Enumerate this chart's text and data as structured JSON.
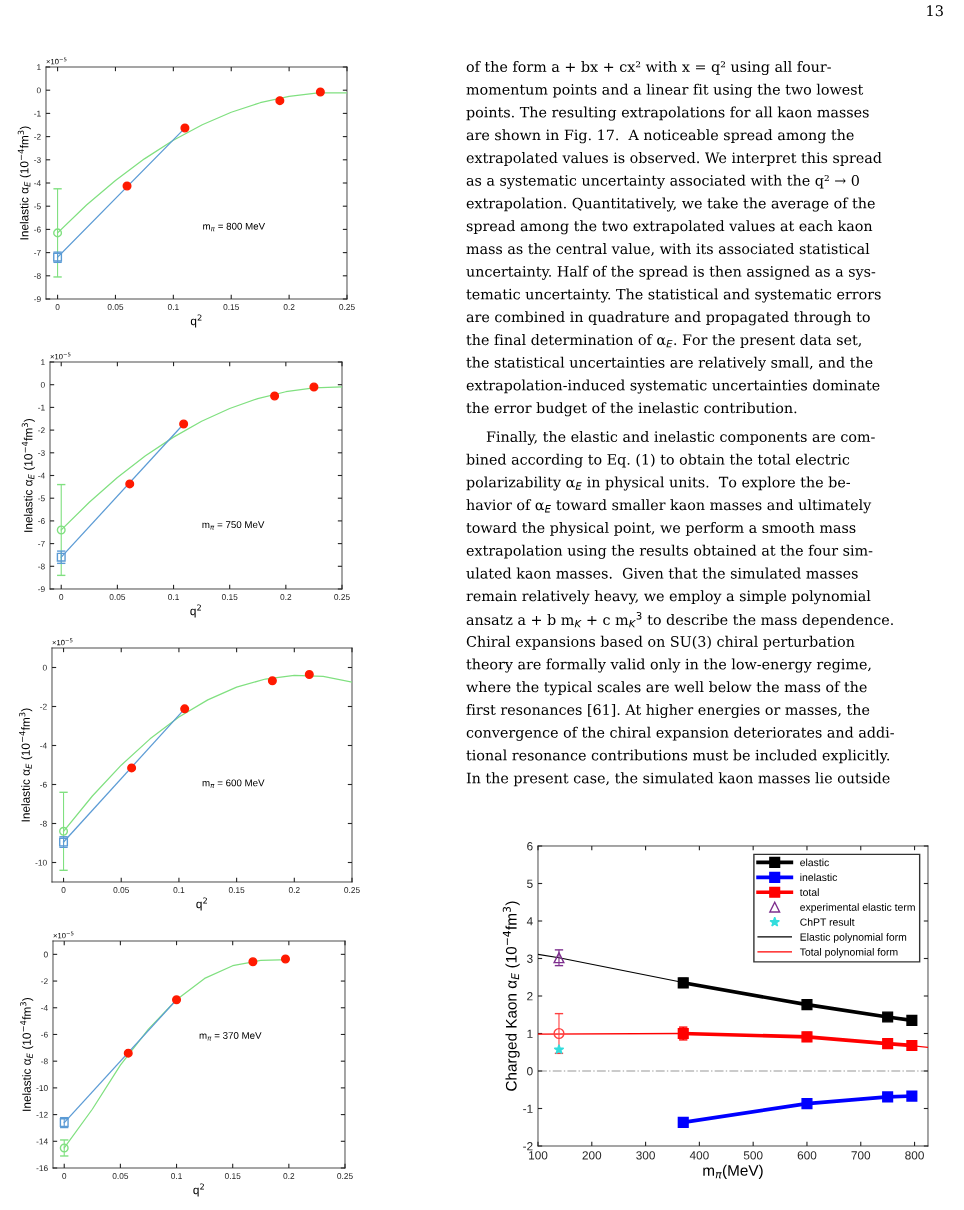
{
  "chart_data": [
    {
      "type": "scatter",
      "xlabel": "q$^{2}$",
      "ylabel": "Inelastic α$_{E}$ (10$^{−4}$fm$^{3}$)",
      "xlim": [
        -0.01,
        0.25
      ],
      "ylim": [
        -9,
        1
      ],
      "xticks": [
        0,
        0.05,
        0.1,
        0.15,
        0.2,
        0.25
      ],
      "yticks": [
        -9,
        -8,
        -7,
        -6,
        -5,
        -4,
        -3,
        -2,
        -1,
        0,
        1
      ],
      "annotations": [
        "×10$^{−5}$",
        "m$_{π}$ = 800 MeV"
      ],
      "series": [
        {
          "type": "line",
          "color": "#80e080",
          "x": [
            0,
            0.025,
            0.05,
            0.075,
            0.1,
            0.125,
            0.15,
            0.175,
            0.2,
            0.225,
            0.25
          ],
          "values": [
            -6.15,
            -4.95,
            -3.89,
            -2.96,
            -2.16,
            -1.49,
            -0.95,
            -0.54,
            -0.27,
            -0.12,
            -0.11
          ]
        },
        {
          "type": "line",
          "color": "#5b9bd5",
          "x": [
            0,
            0.11
          ],
          "values": [
            -7.2,
            -1.63
          ]
        },
        {
          "type": "scatter",
          "color": "#ff1a00",
          "marker": "circle",
          "x": [
            0.06,
            0.11,
            0.192,
            0.227
          ],
          "values": [
            -4.13,
            -1.63,
            -0.45,
            -0.08
          ]
        },
        {
          "type": "scatter",
          "color": "#80e080",
          "marker": "circle",
          "x": [
            0
          ],
          "values": [
            -6.15
          ],
          "errors": [
            1.9
          ]
        },
        {
          "type": "scatter",
          "color": "#5b9bd5",
          "marker": "square",
          "x": [
            0
          ],
          "values": [
            -7.2
          ],
          "errors": [
            0.22
          ]
        }
      ]
    },
    {
      "type": "scatter",
      "xlabel": "q$^{2}$",
      "ylabel": "Inelastic α$_{E}$ (10$^{−4}$fm$^{3}$)",
      "xlim": [
        -0.01,
        0.25
      ],
      "ylim": [
        -9,
        1
      ],
      "xticks": [
        0,
        0.05,
        0.1,
        0.15,
        0.2,
        0.25
      ],
      "yticks": [
        -9,
        -8,
        -7,
        -6,
        -5,
        -4,
        -3,
        -2,
        -1,
        0,
        1
      ],
      "annotations": [
        "×10$^{−5}$",
        "m$_{π}$ = 750 MeV"
      ],
      "series": [
        {
          "type": "line",
          "color": "#80e080",
          "x": [
            0,
            0.025,
            0.05,
            0.075,
            0.1,
            0.125,
            0.15,
            0.175,
            0.2,
            0.225,
            0.25
          ],
          "values": [
            -6.4,
            -5.18,
            -4.09,
            -3.13,
            -2.31,
            -1.61,
            -1.05,
            -0.61,
            -0.31,
            -0.14,
            -0.1
          ]
        },
        {
          "type": "line",
          "color": "#5b9bd5",
          "x": [
            0,
            0.109
          ],
          "values": [
            -7.6,
            -1.73
          ]
        },
        {
          "type": "scatter",
          "color": "#ff1a00",
          "marker": "circle",
          "x": [
            0.061,
            0.109,
            0.19,
            0.225
          ],
          "values": [
            -4.37,
            -1.73,
            -0.5,
            -0.1
          ]
        },
        {
          "type": "scatter",
          "color": "#80e080",
          "marker": "circle",
          "x": [
            0
          ],
          "values": [
            -6.4
          ],
          "errors": [
            2.0
          ]
        },
        {
          "type": "scatter",
          "color": "#5b9bd5",
          "marker": "square",
          "x": [
            0
          ],
          "values": [
            -7.6
          ],
          "errors": [
            0.27
          ]
        }
      ]
    },
    {
      "type": "scatter",
      "xlabel": "q$^{2}$",
      "ylabel": "Inelastic α$_{E}$ (10$^{−4}$fm$^{3}$)",
      "xlim": [
        -0.01,
        0.25
      ],
      "ylim": [
        -11,
        1
      ],
      "xticks": [
        0,
        0.05,
        0.1,
        0.15,
        0.2,
        0.25
      ],
      "yticks": [
        -10,
        -8,
        -6,
        -4,
        -2,
        0
      ],
      "annotations": [
        "×10$^{−5}$",
        "m$_{π}$ = 600 MeV"
      ],
      "series": [
        {
          "type": "line",
          "color": "#80e080",
          "x": [
            0,
            0.025,
            0.05,
            0.075,
            0.1,
            0.125,
            0.15,
            0.175,
            0.2,
            0.225,
            0.25
          ],
          "values": [
            -8.41,
            -6.59,
            -5.01,
            -3.66,
            -2.54,
            -1.66,
            -1.01,
            -0.59,
            -0.41,
            -0.46,
            -0.75
          ]
        },
        {
          "type": "line",
          "color": "#5b9bd5",
          "x": [
            0,
            0.105
          ],
          "values": [
            -8.95,
            -2.12
          ]
        },
        {
          "type": "scatter",
          "color": "#ff1a00",
          "marker": "circle",
          "x": [
            0.059,
            0.105,
            0.181,
            0.213
          ],
          "values": [
            -5.15,
            -2.12,
            -0.68,
            -0.36
          ]
        },
        {
          "type": "scatter",
          "color": "#80e080",
          "marker": "circle",
          "x": [
            0
          ],
          "values": [
            -8.4
          ],
          "errors": [
            2.0
          ]
        },
        {
          "type": "scatter",
          "color": "#5b9bd5",
          "marker": "square",
          "x": [
            0
          ],
          "values": [
            -8.95
          ],
          "errors": [
            0.27
          ]
        }
      ]
    },
    {
      "type": "scatter",
      "xlabel": "q$^{2}$",
      "ylabel": "Inelastic α$_{E}$ (10$^{−4}$fm$^{3}$)",
      "xlim": [
        -0.01,
        0.25
      ],
      "ylim": [
        -16,
        1
      ],
      "xticks": [
        0,
        0.05,
        0.1,
        0.15,
        0.2,
        0.25
      ],
      "yticks": [
        -16,
        -14,
        -12,
        -10,
        -8,
        -6,
        -4,
        -2,
        0
      ],
      "annotations": [
        "×10$^{−5}$",
        "m$_{π}$ = 370 MeV"
      ],
      "series": [
        {
          "type": "line",
          "color": "#80e080",
          "x": [
            0,
            0.025,
            0.05,
            0.075,
            0.1,
            0.125,
            0.15,
            0.175,
            0.2
          ],
          "values": [
            -14.5,
            -11.6,
            -8.3,
            -5.6,
            -3.4,
            -1.8,
            -0.85,
            -0.45,
            -0.4
          ]
        },
        {
          "type": "line",
          "color": "#5b9bd5",
          "x": [
            0,
            0.1
          ],
          "values": [
            -12.6,
            -3.4
          ]
        },
        {
          "type": "scatter",
          "color": "#ff1a00",
          "marker": "circle",
          "x": [
            0.057,
            0.1,
            0.168,
            0.197
          ],
          "values": [
            -7.4,
            -3.4,
            -0.55,
            -0.35
          ]
        },
        {
          "type": "scatter",
          "color": "#80e080",
          "marker": "circle",
          "x": [
            0
          ],
          "values": [
            -14.5
          ],
          "errors": [
            0.6
          ]
        },
        {
          "type": "scatter",
          "color": "#5b9bd5",
          "marker": "square",
          "x": [
            0
          ],
          "values": [
            -12.6
          ],
          "errors": [
            0.37
          ]
        }
      ]
    },
    {
      "type": "line",
      "xlabel": "m$_{π}$(MeV)",
      "ylabel": "Charged Kaon α$_{E}$ (10$^{−4}$fm$^{3}$)",
      "xlim": [
        100,
        825
      ],
      "ylim": [
        -2,
        6
      ],
      "xticks": [
        100,
        200,
        300,
        400,
        500,
        600,
        700,
        800
      ],
      "yticks": [
        -2,
        -1,
        0,
        1,
        2,
        3,
        4,
        5,
        6
      ],
      "legend": "top right",
      "ref_lines": [
        {
          "axis": "y",
          "value": 0,
          "color": "#bbbbbb",
          "line_style": "dashdot"
        }
      ],
      "series": [
        {
          "name": "elastic",
          "type": "line",
          "color": "#000000",
          "marker": "square",
          "x": [
            370,
            600,
            750,
            795
          ],
          "values": [
            2.35,
            1.77,
            1.44,
            1.35
          ],
          "errors": [
            0.12,
            0.05,
            0.06,
            0.05
          ]
        },
        {
          "name": "inelastic",
          "type": "line",
          "color": "#0000ff",
          "marker": "square",
          "x": [
            370,
            600,
            750,
            795
          ],
          "values": [
            -1.37,
            -0.87,
            -0.69,
            -0.67
          ],
          "errors": [
            0.08,
            0.08,
            0.08,
            0.08
          ]
        },
        {
          "name": "total",
          "type": "line",
          "color": "#ff0000",
          "marker": "square",
          "x": [
            370,
            600,
            750,
            795
          ],
          "values": [
            1.0,
            0.91,
            0.73,
            0.68
          ],
          "errors": [
            0.17,
            0.12,
            0.12,
            0.12
          ]
        },
        {
          "name": "experimental elastic term",
          "type": "scatter",
          "color": "#7e2f8e",
          "marker": "triangle",
          "x": [
            139
          ],
          "values": [
            3.02
          ],
          "errors": [
            0.21
          ]
        },
        {
          "name": "ChPT result",
          "type": "scatter",
          "color": "#33dddd",
          "marker": "star",
          "x": [
            139
          ],
          "values": [
            0.57
          ]
        },
        {
          "name": "Elastic polynomial form",
          "type": "line",
          "color": "#000000",
          "x": [
            100,
            139,
            370,
            600,
            750,
            795
          ],
          "values": [
            3.11,
            3.02,
            2.36,
            1.77,
            1.44,
            1.35
          ]
        },
        {
          "name": "Total polynomial form",
          "type": "line",
          "color": "#ff0000",
          "x": [
            100,
            370,
            600,
            750,
            825
          ],
          "values": [
            0.98,
            1.0,
            0.9,
            0.74,
            0.63
          ]
        },
        {
          "type": "scatter",
          "color": "#ff4040",
          "marker": "circle",
          "x": [
            139
          ],
          "values": [
            1.0
          ],
          "errors": [
            0.53
          ]
        }
      ]
    },
    {
      "type": "other",
      "annotations": [
        "13",
        "of the form a + bx + cx² with x = q² using all four-",
        "momentum points and a linear fit using the two lowest",
        "points. The resulting extrapolations for all kaon masses",
        "are shown in Fig. 17.  A noticeable spread among the",
        "extrapolated values is observed. We interpret this spread",
        "as a systematic uncertainty associated with the q² → 0",
        "extrapolation. Quantitatively, we take the average of the",
        "spread among the two extrapolated values at each kaon",
        "mass as the central value, with its associated statistical",
        "uncertainty. Half of the spread is then assigned as a sys-",
        "tematic uncertainty. The statistical and systematic errors",
        "are combined in quadrature and propagated through to",
        "the final determination of α$_{E}$. For the present data set,",
        "the statistical uncertainties are relatively small, and the",
        "extrapolation-induced systematic uncertainties dominate",
        "the error budget of the inelastic contribution.",
        "Finally, the elastic and inelastic components are com-",
        "bined according to Eq. (1) to obtain the total electric",
        "polarizability α$_{E}$ in physical units.  To explore the be-",
        "havior of α$_{E}$ toward smaller kaon masses and ultimately",
        "toward the physical point, we perform a smooth mass",
        "extrapolation using the results obtained at the four sim-",
        "ulated kaon masses.  Given that the simulated masses",
        "remain relatively heavy, we employ a simple polynomial",
        "ansatz a + b m$_{K}$ + c m$_{K}$$^{3}$ to describe the mass dependence.",
        "Chiral expansions based on SU(3) chiral perturbation",
        "theory are formally valid only in the low-energy regime,",
        "where the typical scales are well below the mass of the",
        "first resonances [61]. At higher energies or masses, the",
        "convergence of the chiral expansion deteriorates and addi-",
        "tional resonance contributions must be included explicitly.",
        "In the present case, the simulated kaon masses lie outside"
      ]
    }
  ]
}
